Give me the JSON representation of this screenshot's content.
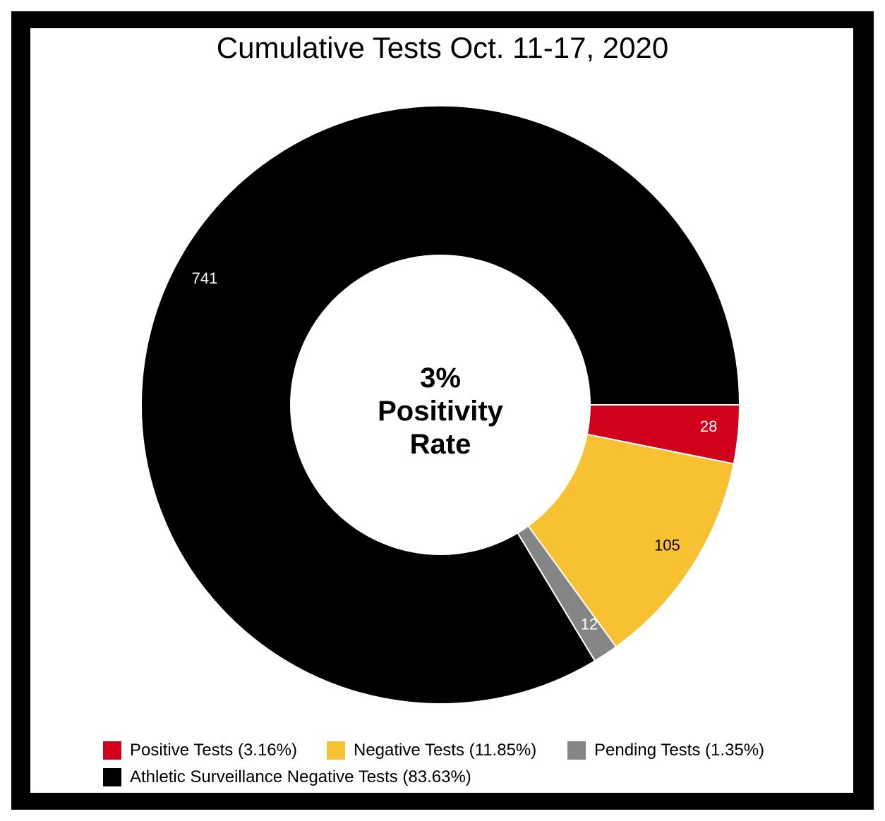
{
  "chart_data": {
    "type": "pie",
    "title": "Cumulative Tests Oct. 11-17, 2020",
    "center_text": [
      "3%",
      "Positivity",
      "Rate"
    ],
    "slices": [
      {
        "label": "Positive Tests (3.16%)",
        "value": 28,
        "data_label": "28",
        "color": "#d0021b",
        "label_color": "#ffffff"
      },
      {
        "label": "Negative Tests (11.85%)",
        "value": 105,
        "data_label": "105",
        "color": "#f8c132",
        "label_color": "#000000"
      },
      {
        "label": "Pending Tests (1.35%)",
        "value": 12,
        "data_label": "12",
        "color": "#858585",
        "label_color": "#ffffff"
      },
      {
        "label": "Athletic Surveillance Negative Tests (83.63%)",
        "value": 741,
        "data_label": "741",
        "color": "#000000",
        "label_color": "#ffffff"
      }
    ],
    "legend": "bottom"
  }
}
